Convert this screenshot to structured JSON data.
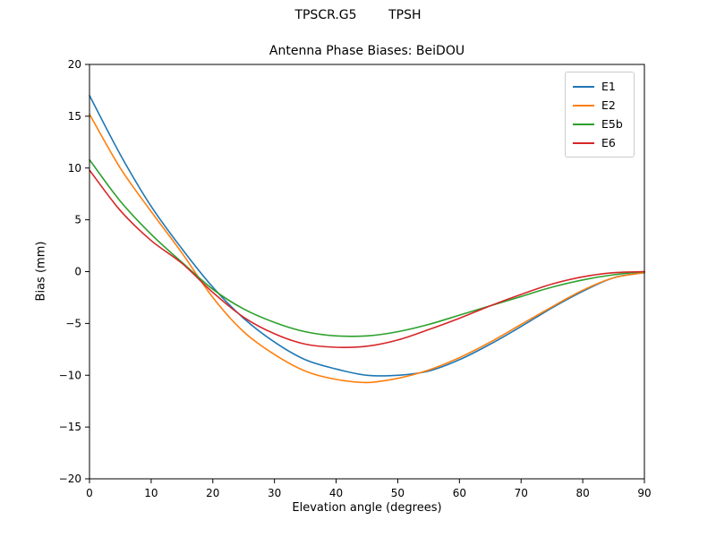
{
  "window": {
    "suptitle": "TPSCR.G5        TPSH"
  },
  "chart_data": {
    "type": "line",
    "suptitle": "TPSCR.G5        TPSH",
    "title": "Antenna Phase Biases: BeiDOU",
    "xlabel": "Elevation angle (degrees)",
    "ylabel": "Bias (mm)",
    "xlim": [
      0,
      90
    ],
    "ylim": [
      -20,
      20
    ],
    "xticks": [
      0,
      10,
      20,
      30,
      40,
      50,
      60,
      70,
      80,
      90
    ],
    "yticks": [
      -20,
      -15,
      -10,
      -5,
      0,
      5,
      10,
      15,
      20
    ],
    "grid": false,
    "legend_position": "upper right",
    "x": [
      0,
      5,
      10,
      15,
      20,
      25,
      30,
      35,
      40,
      45,
      50,
      55,
      60,
      65,
      70,
      75,
      80,
      85,
      90
    ],
    "series": [
      {
        "name": "E1",
        "color": "#1f77b4",
        "values": [
          17.0,
          11.3,
          6.3,
          2.2,
          -1.5,
          -4.5,
          -6.8,
          -8.5,
          -9.4,
          -10.0,
          -10.0,
          -9.6,
          -8.5,
          -7.0,
          -5.3,
          -3.5,
          -1.9,
          -0.6,
          -0.1
        ]
      },
      {
        "name": "E2",
        "color": "#ff7f0e",
        "values": [
          15.2,
          10.0,
          5.8,
          1.8,
          -2.5,
          -5.8,
          -8.0,
          -9.6,
          -10.4,
          -10.7,
          -10.3,
          -9.5,
          -8.3,
          -6.8,
          -5.1,
          -3.4,
          -1.8,
          -0.6,
          -0.1
        ]
      },
      {
        "name": "E5b",
        "color": "#2ca02c",
        "values": [
          10.8,
          6.8,
          3.6,
          0.9,
          -1.7,
          -3.6,
          -4.9,
          -5.8,
          -6.2,
          -6.2,
          -5.8,
          -5.1,
          -4.2,
          -3.3,
          -2.4,
          -1.5,
          -0.8,
          -0.3,
          0.0
        ]
      },
      {
        "name": "E6",
        "color": "#d62728",
        "values": [
          9.8,
          5.9,
          3.0,
          0.8,
          -2.0,
          -4.4,
          -6.0,
          -7.0,
          -7.3,
          -7.2,
          -6.6,
          -5.6,
          -4.5,
          -3.3,
          -2.2,
          -1.2,
          -0.5,
          -0.1,
          0.0
        ]
      }
    ]
  }
}
